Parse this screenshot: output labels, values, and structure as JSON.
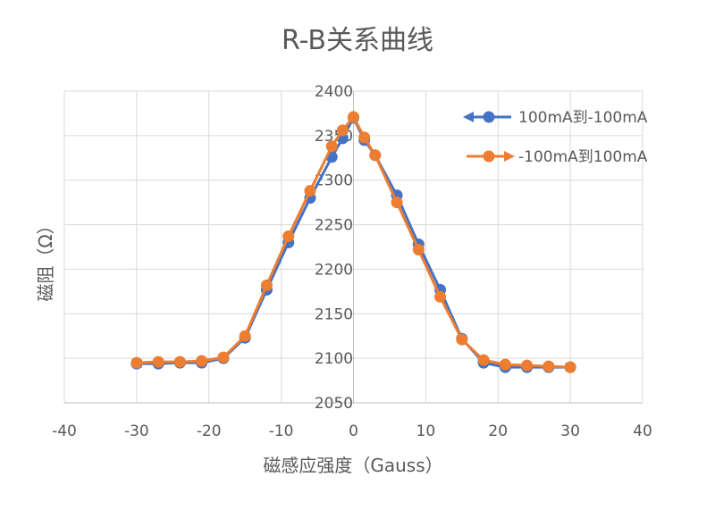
{
  "chart_data": {
    "type": "scatter",
    "title": "R-B关系曲线",
    "xlabel": "磁感应强度（Gauss）",
    "ylabel": "磁阻（Ω）",
    "xlim": [
      -40,
      40
    ],
    "ylim": [
      2050,
      2400
    ],
    "xticks": [
      -40,
      -30,
      -20,
      -10,
      0,
      10,
      20,
      30,
      40
    ],
    "yticks": [
      2050,
      2100,
      2150,
      2200,
      2250,
      2300,
      2350,
      2400
    ],
    "xtick_labels": [
      "-40",
      "-30",
      "-20",
      "-10",
      "0",
      "10",
      "20",
      "30",
      "40"
    ],
    "ytick_labels": [
      "2050",
      "2100",
      "2150",
      "2200",
      "2250",
      "2300",
      "2350",
      "2400"
    ],
    "grid": true,
    "legend": "top-right",
    "series": [
      {
        "name": "100mA到-100mA",
        "color": "#4472C4",
        "x": [
          30,
          27,
          24,
          21,
          18,
          15,
          12,
          9,
          6,
          3,
          1.5,
          0,
          -1.5,
          -3,
          -6,
          -9,
          -12,
          -15,
          -18,
          -21,
          -24,
          -27,
          -30
        ],
        "y": [
          2090,
          2090,
          2090,
          2090,
          2095,
          2122,
          2177,
          2228,
          2283,
          2328,
          2345,
          2370,
          2347,
          2326,
          2280,
          2230,
          2177,
          2123,
          2100,
          2095,
          2095,
          2094,
          2094
        ]
      },
      {
        "name": "-100mA到100mA",
        "color": "#ED7D31",
        "x": [
          -30,
          -27,
          -24,
          -21,
          -18,
          -15,
          -12,
          -9,
          -6,
          -3,
          -1.5,
          0,
          1.5,
          3,
          6,
          9,
          12,
          15,
          18,
          21,
          24,
          27,
          30
        ],
        "y": [
          2095,
          2096,
          2096,
          2097,
          2101,
          2125,
          2182,
          2237,
          2288,
          2338,
          2356,
          2371,
          2348,
          2328,
          2275,
          2222,
          2169,
          2121,
          2098,
          2093,
          2092,
          2091,
          2090
        ]
      }
    ]
  }
}
